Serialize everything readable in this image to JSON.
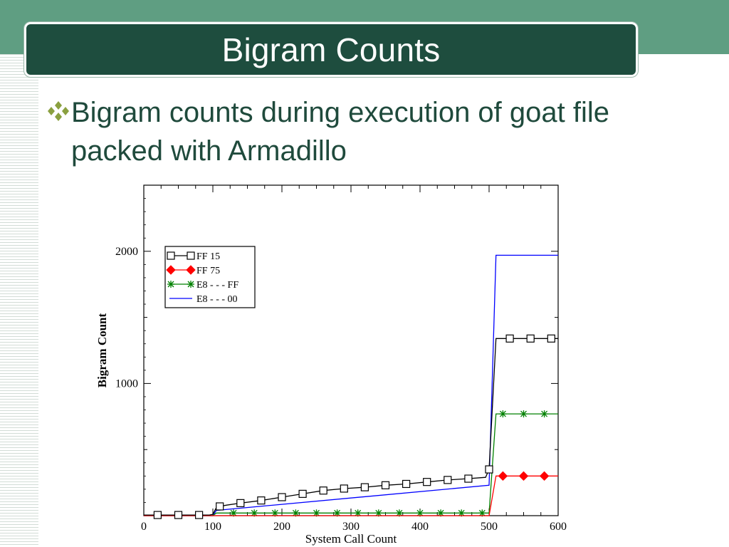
{
  "slide": {
    "title": "Bigram Counts",
    "bullet_icon": "diamond-cluster-bullet-icon",
    "bullet_text_line1": "Bigram counts during execution of goat file",
    "bullet_text_line2": "packed with Armadillo"
  },
  "colors": {
    "top_band": "#5f9e82",
    "title_box": "#1e4d3e",
    "text": "#1f4a3c",
    "bullet": "#8aa040"
  },
  "chart_data": {
    "type": "line",
    "xlabel": "System Call Count",
    "ylabel": "Bigram Count",
    "xlim": [
      0,
      600
    ],
    "ylim": [
      0,
      2500
    ],
    "xticks": [
      0,
      100,
      200,
      300,
      400,
      500,
      600
    ],
    "yticks": [
      1000,
      2000
    ],
    "legend_position": "top-left",
    "series": [
      {
        "name": "FF 15",
        "color": "#000000",
        "marker": "square",
        "points": [
          [
            0,
            5
          ],
          [
            20,
            5
          ],
          [
            40,
            5
          ],
          [
            60,
            5
          ],
          [
            80,
            5
          ],
          [
            95,
            5
          ],
          [
            100,
            10
          ],
          [
            105,
            60
          ],
          [
            110,
            70
          ],
          [
            120,
            80
          ],
          [
            140,
            95
          ],
          [
            170,
            115
          ],
          [
            200,
            140
          ],
          [
            230,
            165
          ],
          [
            260,
            190
          ],
          [
            290,
            205
          ],
          [
            320,
            215
          ],
          [
            350,
            230
          ],
          [
            380,
            240
          ],
          [
            410,
            255
          ],
          [
            440,
            270
          ],
          [
            470,
            280
          ],
          [
            495,
            290
          ],
          [
            500,
            350
          ],
          [
            510,
            1340
          ],
          [
            540,
            1340
          ],
          [
            570,
            1340
          ],
          [
            600,
            1340
          ]
        ],
        "marker_points": [
          [
            20,
            5
          ],
          [
            50,
            5
          ],
          [
            80,
            5
          ],
          [
            110,
            70
          ],
          [
            140,
            95
          ],
          [
            170,
            115
          ],
          [
            200,
            140
          ],
          [
            230,
            165
          ],
          [
            260,
            190
          ],
          [
            290,
            205
          ],
          [
            320,
            215
          ],
          [
            350,
            230
          ],
          [
            380,
            240
          ],
          [
            410,
            255
          ],
          [
            440,
            270
          ],
          [
            470,
            280
          ],
          [
            500,
            350
          ],
          [
            530,
            1340
          ],
          [
            560,
            1340
          ],
          [
            590,
            1340
          ]
        ]
      },
      {
        "name": "FF 75",
        "color": "#ff0000",
        "marker": "diamond",
        "points": [
          [
            0,
            0
          ],
          [
            500,
            0
          ],
          [
            510,
            300
          ],
          [
            600,
            300
          ]
        ],
        "marker_points": [
          [
            520,
            300
          ],
          [
            550,
            300
          ],
          [
            580,
            300
          ]
        ]
      },
      {
        "name": "E8 - - - FF",
        "color": "#008000",
        "marker": "asterisk",
        "points": [
          [
            0,
            0
          ],
          [
            100,
            0
          ],
          [
            105,
            20
          ],
          [
            500,
            20
          ],
          [
            510,
            770
          ],
          [
            600,
            770
          ]
        ],
        "marker_points": [
          [
            130,
            20
          ],
          [
            160,
            20
          ],
          [
            190,
            20
          ],
          [
            220,
            20
          ],
          [
            250,
            20
          ],
          [
            280,
            20
          ],
          [
            310,
            20
          ],
          [
            340,
            20
          ],
          [
            370,
            20
          ],
          [
            400,
            20
          ],
          [
            430,
            20
          ],
          [
            460,
            20
          ],
          [
            490,
            20
          ],
          [
            520,
            770
          ],
          [
            550,
            770
          ],
          [
            580,
            770
          ]
        ]
      },
      {
        "name": "E8 - - - 00",
        "color": "#0000ff",
        "marker": "none",
        "points": [
          [
            0,
            0
          ],
          [
            100,
            0
          ],
          [
            105,
            40
          ],
          [
            500,
            230
          ],
          [
            510,
            1970
          ],
          [
            600,
            1970
          ]
        ],
        "marker_points": []
      }
    ]
  }
}
